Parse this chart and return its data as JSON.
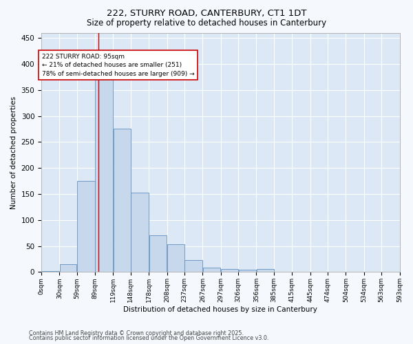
{
  "title1": "222, STURRY ROAD, CANTERBURY, CT1 1DT",
  "title2": "Size of property relative to detached houses in Canterbury",
  "xlabel": "Distribution of detached houses by size in Canterbury",
  "ylabel": "Number of detached properties",
  "bar_color": "#c8d8ec",
  "bar_edge_color": "#6090c0",
  "plot_bg_color": "#dce8f5",
  "fig_bg_color": "#f5f8fc",
  "grid_color": "#ffffff",
  "vline_color": "#cc0000",
  "bin_edges": [
    0,
    30,
    59,
    89,
    119,
    148,
    178,
    208,
    237,
    267,
    297,
    326,
    356,
    385,
    415,
    445,
    474,
    504,
    534,
    563,
    593
  ],
  "bar_heights": [
    2,
    15,
    175,
    375,
    275,
    152,
    70,
    54,
    23,
    9,
    6,
    5,
    6,
    0,
    0,
    0,
    0,
    0,
    0,
    1
  ],
  "tick_labels": [
    "0sqm",
    "30sqm",
    "59sqm",
    "89sqm",
    "119sqm",
    "148sqm",
    "178sqm",
    "208sqm",
    "237sqm",
    "267sqm",
    "297sqm",
    "326sqm",
    "356sqm",
    "385sqm",
    "415sqm",
    "445sqm",
    "474sqm",
    "504sqm",
    "534sqm",
    "563sqm",
    "593sqm"
  ],
  "vline_x": 95,
  "annotation_line1": "222 STURRY ROAD: 95sqm",
  "annotation_line2": "← 21% of detached houses are smaller (251)",
  "annotation_line3": "78% of semi-detached houses are larger (909) →",
  "ylim": [
    0,
    460
  ],
  "yticks": [
    0,
    50,
    100,
    150,
    200,
    250,
    300,
    350,
    400,
    450
  ],
  "footnote1": "Contains HM Land Registry data © Crown copyright and database right 2025.",
  "footnote2": "Contains public sector information licensed under the Open Government Licence v3.0."
}
